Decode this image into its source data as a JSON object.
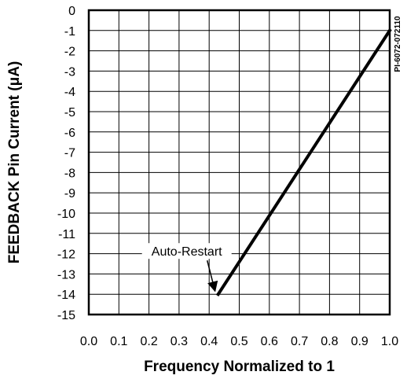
{
  "chart_data": {
    "type": "line",
    "xlabel": "Frequency Normalized to 1",
    "ylabel": "FEEDBACK Pin Current (μA)",
    "xlim": [
      0.0,
      1.0
    ],
    "ylim": [
      -15,
      0
    ],
    "x_ticks": [
      0.0,
      0.1,
      0.2,
      0.3,
      0.4,
      0.5,
      0.6,
      0.7,
      0.8,
      0.9,
      1.0
    ],
    "x_tick_labels": [
      "0.0",
      "0.1",
      "0.2",
      "0.3",
      "0.4",
      "0.5",
      "0.6",
      "0.7",
      "0.8",
      "0.9",
      "1.0"
    ],
    "y_ticks": [
      0,
      -1,
      -2,
      -3,
      -4,
      -5,
      -6,
      -7,
      -8,
      -9,
      -10,
      -11,
      -12,
      -13,
      -14,
      -15
    ],
    "y_tick_labels": [
      "0",
      "-1",
      "-2",
      "-3",
      "-4",
      "-5",
      "-6",
      "-7",
      "-8",
      "-9",
      "-10",
      "-11",
      "-12",
      "-13",
      "-14",
      "-15"
    ],
    "grid": true,
    "series": [
      {
        "x": [
          0.43,
          1.0
        ],
        "y": [
          -14,
          -1
        ]
      }
    ],
    "annotations": [
      {
        "text": "Auto-Restart",
        "x": 0.43,
        "y": -14
      }
    ],
    "figure_code": "PI-6072-072110"
  }
}
